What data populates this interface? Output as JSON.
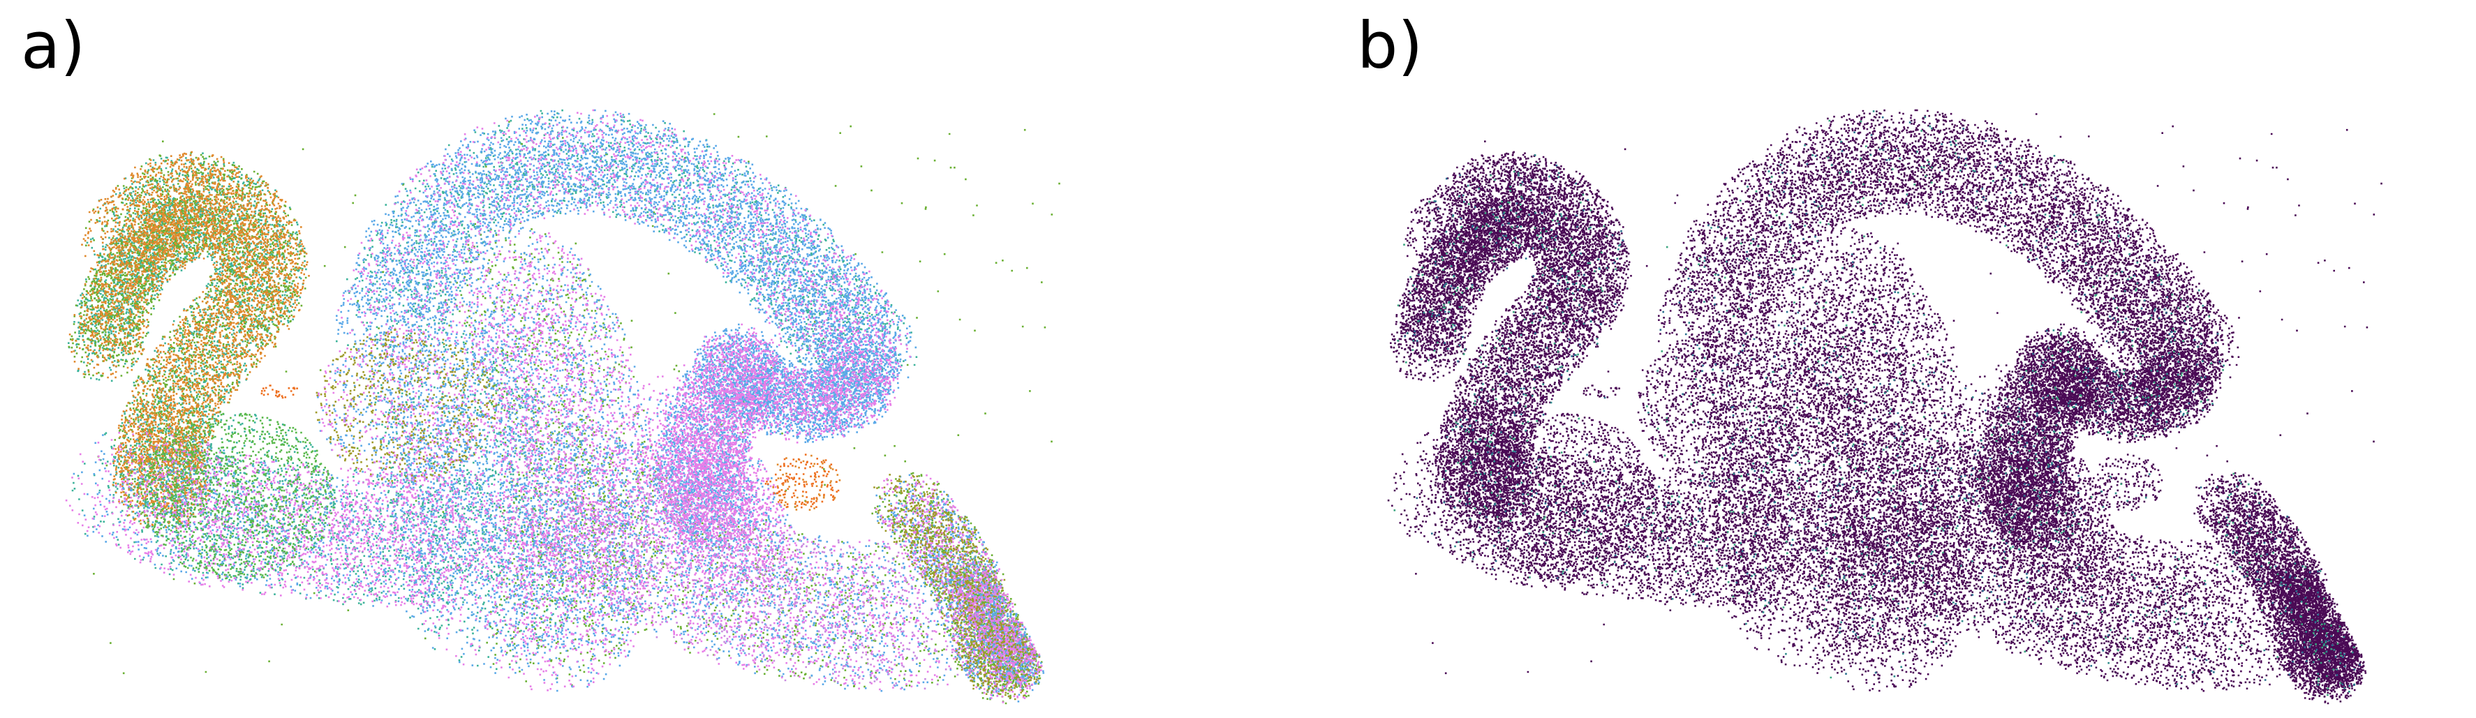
{
  "panels": [
    {
      "label": "a)",
      "coloring": "multi-cluster"
    },
    {
      "label": "b)",
      "coloring": "single-dominant"
    }
  ],
  "palette_a": [
    "#5aa8e8",
    "#e77ee8",
    "#6ab033",
    "#e0892c",
    "#3cb39a",
    "#9f9a2a",
    "#58b84a",
    "#c98be0",
    "#ee7020"
  ],
  "palette_b_base": "#4a0a55",
  "palette_b_accent": [
    "#2f8c8c",
    "#3aa57f",
    "#2a6f8f"
  ]
}
